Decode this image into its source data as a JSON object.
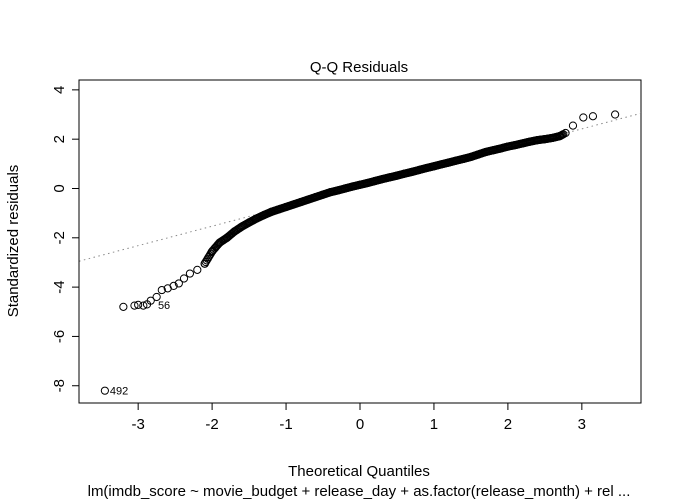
{
  "chart_data": {
    "type": "scatter",
    "title": "Q-Q Residuals",
    "xlabel": "Theoretical Quantiles",
    "ylabel": "Standardized residuals",
    "subtitle": "lm(imdb_score ~ movie_budget + release_day + as.factor(release_month) + rel ...",
    "xlim": [
      -3.8,
      3.8
    ],
    "ylim": [
      -8.7,
      4.4
    ],
    "xticks": [
      "-3",
      "-2",
      "-1",
      "0",
      "1",
      "2",
      "3"
    ],
    "xtick_values": [
      -3,
      -2,
      -1,
      0,
      1,
      2,
      3
    ],
    "yticks": [
      "-8",
      "-6",
      "-4",
      "-2",
      "0",
      "2",
      "4"
    ],
    "ytick_values": [
      -8,
      -6,
      -4,
      -2,
      0,
      2,
      4
    ],
    "grid": false,
    "marker": "open-circle",
    "reference_line": {
      "style": "dotted",
      "color": "#888888",
      "points": [
        [
          -3.8,
          -2.95
        ],
        [
          3.8,
          3.05
        ]
      ]
    },
    "points": [
      [
        -3.45,
        -8.2
      ],
      [
        -3.2,
        -4.8
      ],
      [
        -3.05,
        -4.75
      ],
      [
        -3.0,
        -4.72
      ],
      [
        -2.93,
        -4.75
      ],
      [
        -2.88,
        -4.7
      ],
      [
        -2.83,
        -4.55
      ],
      [
        -2.75,
        -4.4
      ],
      [
        -2.68,
        -4.12
      ],
      [
        -2.6,
        -4.05
      ],
      [
        -2.52,
        -3.95
      ],
      [
        -2.45,
        -3.85
      ],
      [
        -2.38,
        -3.65
      ],
      [
        -2.3,
        -3.45
      ],
      [
        -2.2,
        -3.3
      ],
      [
        -2.1,
        -3.05
      ],
      [
        -2.0,
        -2.55
      ],
      [
        -1.9,
        -2.2
      ],
      [
        -1.8,
        -2.0
      ],
      [
        -1.7,
        -1.75
      ],
      [
        -1.6,
        -1.55
      ],
      [
        -1.5,
        -1.38
      ],
      [
        -1.4,
        -1.22
      ],
      [
        -1.3,
        -1.08
      ],
      [
        -1.2,
        -0.95
      ],
      [
        -1.1,
        -0.85
      ],
      [
        -1.0,
        -0.75
      ],
      [
        -0.9,
        -0.65
      ],
      [
        -0.8,
        -0.55
      ],
      [
        -0.7,
        -0.45
      ],
      [
        -0.6,
        -0.35
      ],
      [
        -0.5,
        -0.25
      ],
      [
        -0.4,
        -0.15
      ],
      [
        -0.3,
        -0.08
      ],
      [
        -0.2,
        0.0
      ],
      [
        -0.1,
        0.08
      ],
      [
        0.0,
        0.15
      ],
      [
        0.1,
        0.22
      ],
      [
        0.2,
        0.3
      ],
      [
        0.3,
        0.38
      ],
      [
        0.4,
        0.45
      ],
      [
        0.5,
        0.52
      ],
      [
        0.6,
        0.6
      ],
      [
        0.7,
        0.67
      ],
      [
        0.8,
        0.75
      ],
      [
        0.9,
        0.83
      ],
      [
        1.0,
        0.9
      ],
      [
        1.1,
        0.98
      ],
      [
        1.2,
        1.05
      ],
      [
        1.3,
        1.13
      ],
      [
        1.4,
        1.2
      ],
      [
        1.5,
        1.28
      ],
      [
        1.6,
        1.38
      ],
      [
        1.7,
        1.48
      ],
      [
        1.8,
        1.55
      ],
      [
        1.9,
        1.62
      ],
      [
        2.0,
        1.7
      ],
      [
        2.1,
        1.76
      ],
      [
        2.2,
        1.83
      ],
      [
        2.3,
        1.9
      ],
      [
        2.4,
        1.96
      ],
      [
        2.5,
        2.0
      ],
      [
        2.6,
        2.05
      ],
      [
        2.7,
        2.12
      ],
      [
        2.78,
        2.25
      ],
      [
        2.88,
        2.55
      ],
      [
        3.02,
        2.88
      ],
      [
        3.15,
        2.93
      ],
      [
        3.45,
        3.0
      ]
    ],
    "dense_segments": [
      {
        "x": [
          -2.1,
          2.75
        ],
        "n": 360
      }
    ],
    "annotations": [
      {
        "text": "492",
        "x": -3.45,
        "y": -8.2
      },
      {
        "text": "56",
        "x": -2.8,
        "y": -4.72
      }
    ]
  }
}
